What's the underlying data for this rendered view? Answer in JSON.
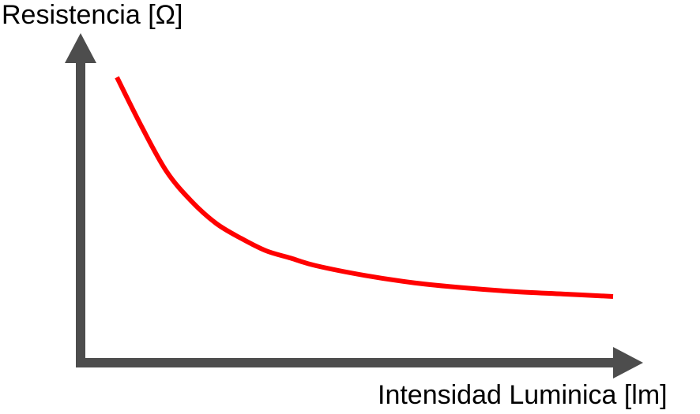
{
  "chart_data": {
    "type": "line",
    "title": "",
    "ylabel": "Resistencia [Ω]",
    "xlabel": "Intensidad Luminica [lm]",
    "grid": false,
    "legend": "none",
    "ticks": false,
    "curve_shape": "decreasing inverse relationship",
    "series": [
      {
        "name": "",
        "color": "#ff0000",
        "x": [
          0,
          0.05,
          0.1,
          0.15,
          0.2,
          0.25,
          0.3,
          0.35,
          0.4,
          0.5,
          0.6,
          0.7,
          0.8,
          0.9,
          1.0
        ],
        "y": [
          1.0,
          0.8,
          0.62,
          0.5,
          0.41,
          0.35,
          0.3,
          0.27,
          0.24,
          0.2,
          0.17,
          0.15,
          0.135,
          0.125,
          0.115
        ]
      }
    ],
    "axis_color": "#4d4d4d"
  }
}
